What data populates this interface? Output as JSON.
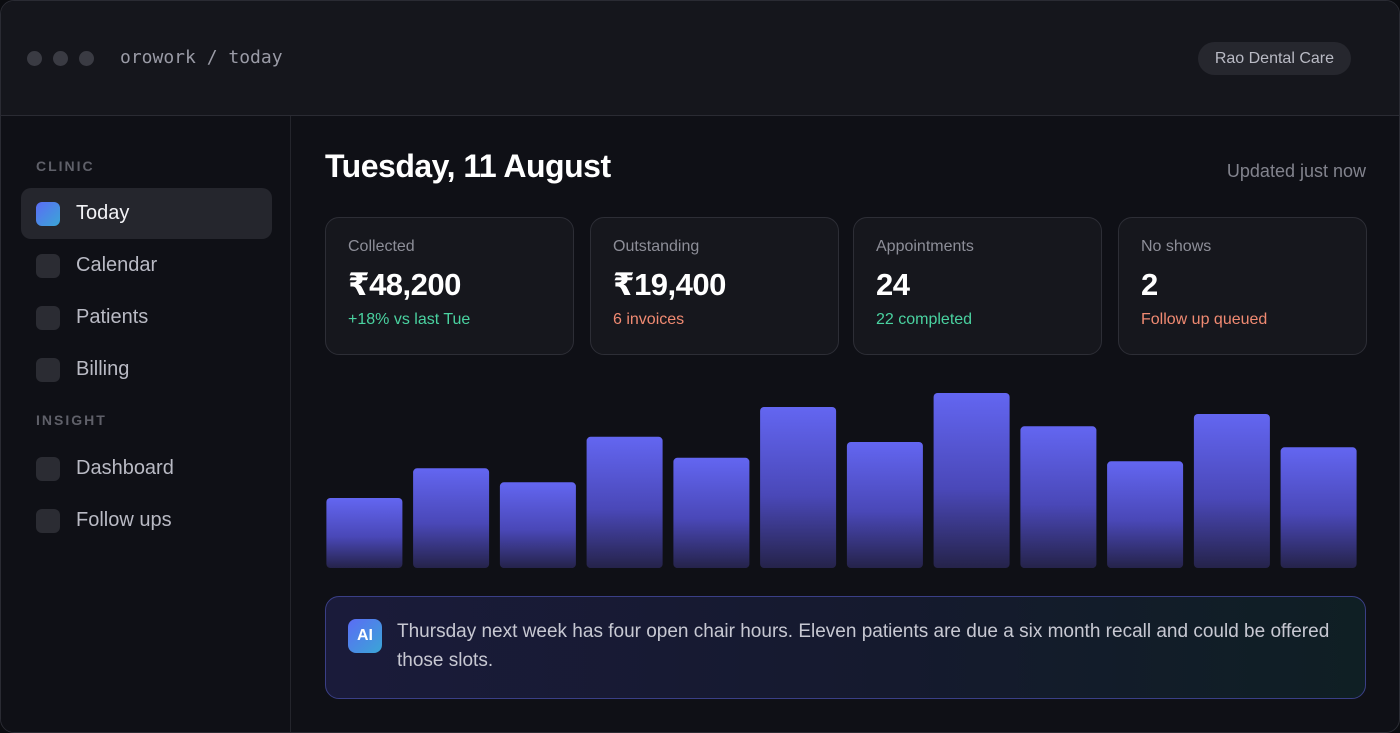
{
  "window": {
    "breadcrumb": "orowork / today",
    "org": "Rao Dental Care"
  },
  "sidebar": {
    "sections": [
      {
        "label": "CLINIC",
        "items": [
          {
            "label": "Today",
            "active": true
          },
          {
            "label": "Calendar",
            "active": false
          },
          {
            "label": "Patients",
            "active": false
          },
          {
            "label": "Billing",
            "active": false
          }
        ]
      },
      {
        "label": "INSIGHT",
        "items": [
          {
            "label": "Dashboard",
            "active": false
          },
          {
            "label": "Follow ups",
            "active": false
          }
        ]
      }
    ]
  },
  "main": {
    "title": "Tuesday, 11 August",
    "updated": "Updated just now",
    "cards": [
      {
        "label": "Collected",
        "value": "₹48,200",
        "sub": "+18% vs last Tue",
        "sub_color": "#4ad2a0"
      },
      {
        "label": "Outstanding",
        "value": "₹19,400",
        "sub": "6 invoices",
        "sub_color": "#f08a72"
      },
      {
        "label": "Appointments",
        "value": "24",
        "sub": "22 completed",
        "sub_color": "#4ad2a0"
      },
      {
        "label": "No shows",
        "value": "2",
        "sub": "Follow up queued",
        "sub_color": "#f08a72"
      }
    ],
    "insight": {
      "badge": "AI",
      "text": "Thursday next week has four open chair hours. Eleven patients are due a six month recall and could be offered those slots."
    }
  },
  "chart_data": {
    "type": "bar",
    "values": [
      40,
      57,
      49,
      75,
      63,
      92,
      72,
      100,
      81,
      61,
      88,
      69
    ],
    "ylim": [
      0,
      100
    ],
    "colors": {
      "top": "#6366f1",
      "bottom": "#25234a"
    }
  }
}
